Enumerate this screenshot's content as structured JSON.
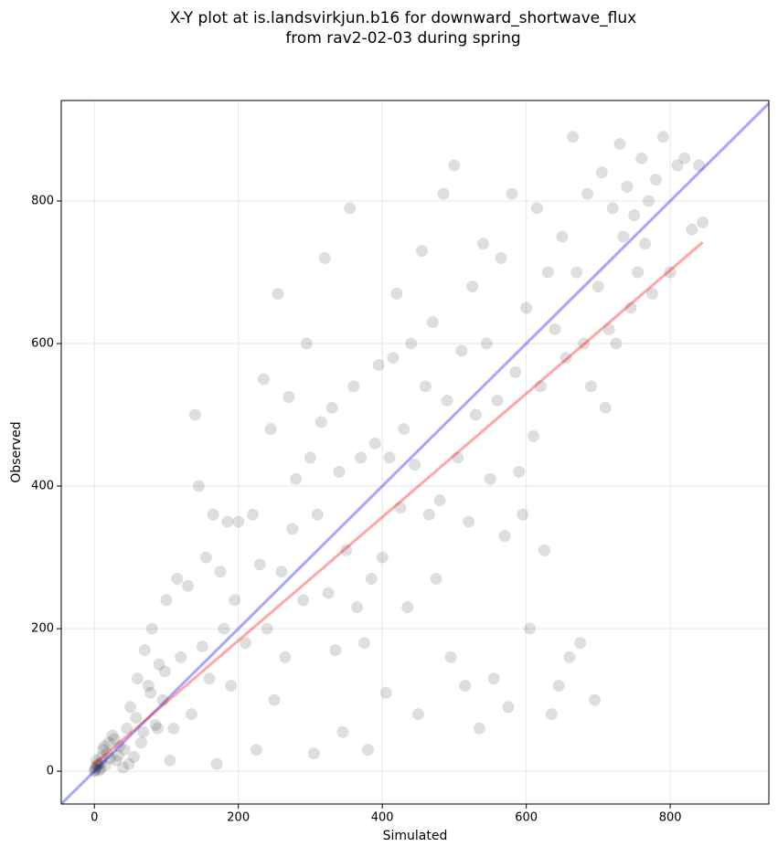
{
  "chart_data": {
    "type": "scatter",
    "title": [
      "X-Y plot at is.landsvirkjun.b16 for downward_shortwave_flux",
      "from rav2-02-03 during spring"
    ],
    "xlabel": "Simulated",
    "ylabel": "Observed",
    "xlim": [
      -46,
      937
    ],
    "ylim": [
      -46,
      941
    ],
    "xticks": [
      0,
      200,
      400,
      600,
      800
    ],
    "yticks": [
      0,
      200,
      400,
      600,
      800
    ],
    "grid": true,
    "series": [
      {
        "color": "#000000",
        "x": [
          0,
          2,
          5,
          8,
          10,
          3,
          12,
          15,
          20,
          18,
          25,
          30,
          35,
          40,
          45,
          50,
          55,
          60,
          65,
          70,
          75,
          80,
          85,
          90,
          95,
          100,
          105,
          110,
          115,
          120,
          130,
          135,
          140,
          145,
          150,
          155,
          160,
          165,
          170,
          175,
          180,
          185,
          190,
          195,
          200,
          210,
          220,
          225,
          230,
          235,
          240,
          245,
          250,
          255,
          260,
          265,
          270,
          275,
          280,
          290,
          295,
          300,
          305,
          310,
          315,
          320,
          325,
          330,
          335,
          340,
          345,
          350,
          355,
          360,
          365,
          370,
          375,
          380,
          385,
          390,
          395,
          400,
          405,
          410,
          415,
          420,
          425,
          430,
          435,
          440,
          445,
          450,
          455,
          460,
          465,
          470,
          475,
          480,
          485,
          490,
          495,
          500,
          505,
          510,
          515,
          520,
          525,
          530,
          535,
          540,
          545,
          550,
          555,
          560,
          565,
          570,
          575,
          580,
          585,
          590,
          595,
          600,
          605,
          610,
          615,
          620,
          625,
          630,
          635,
          640,
          645,
          650,
          655,
          660,
          665,
          670,
          675,
          680,
          685,
          690,
          695,
          700,
          705,
          710,
          715,
          720,
          725,
          730,
          735,
          740,
          745,
          750,
          755,
          760,
          765,
          770,
          775,
          780,
          790,
          800,
          810,
          820,
          830,
          840,
          845,
          1,
          4,
          6,
          9,
          14,
          22,
          28,
          33,
          42,
          48,
          58,
          68,
          78,
          88,
          98
        ],
        "y": [
          0,
          5,
          10,
          3,
          20,
          15,
          30,
          8,
          40,
          25,
          50,
          15,
          35,
          5,
          60,
          90,
          20,
          130,
          40,
          170,
          120,
          200,
          65,
          150,
          100,
          240,
          15,
          60,
          270,
          160,
          260,
          80,
          500,
          400,
          175,
          300,
          130,
          360,
          10,
          280,
          200,
          350,
          120,
          240,
          350,
          180,
          360,
          30,
          290,
          550,
          200,
          480,
          100,
          670,
          280,
          160,
          525,
          340,
          410,
          240,
          600,
          440,
          25,
          360,
          490,
          720,
          250,
          510,
          170,
          420,
          55,
          310,
          790,
          540,
          230,
          440,
          180,
          30,
          270,
          460,
          570,
          300,
          110,
          440,
          580,
          670,
          370,
          480,
          230,
          600,
          430,
          80,
          730,
          540,
          360,
          630,
          270,
          380,
          810,
          520,
          160,
          850,
          440,
          590,
          120,
          350,
          680,
          500,
          60,
          740,
          600,
          410,
          130,
          520,
          720,
          330,
          90,
          810,
          560,
          420,
          360,
          650,
          200,
          470,
          790,
          540,
          310,
          700,
          80,
          620,
          120,
          750,
          580,
          160,
          890,
          700,
          180,
          600,
          810,
          540,
          100,
          680,
          840,
          510,
          620,
          790,
          600,
          880,
          750,
          820,
          650,
          780,
          700,
          860,
          740,
          800,
          670,
          830,
          890,
          700,
          850,
          860,
          760,
          850,
          770,
          2,
          8,
          1,
          12,
          35,
          18,
          45,
          22,
          30,
          10,
          75,
          55,
          110,
          60,
          140
        ]
      },
      {
        "color": "#0000ff",
        "line": true,
        "x": [
          -46,
          937
        ],
        "y": [
          -46,
          937
        ]
      },
      {
        "color": "#ff0000",
        "line": true,
        "x": [
          0,
          845
        ],
        "y": [
          10,
          742
        ]
      }
    ]
  }
}
